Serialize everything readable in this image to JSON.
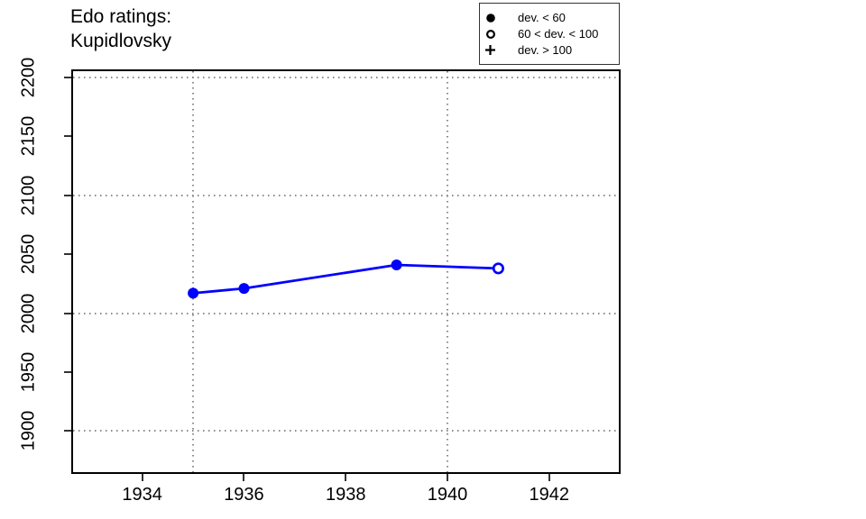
{
  "title": {
    "line1": "Edo ratings:",
    "line2": "Kupidlovsky"
  },
  "legend": {
    "items": [
      {
        "symbol": "filled-circle",
        "label": "dev. < 60"
      },
      {
        "symbol": "open-circle",
        "label": "60 < dev. < 100"
      },
      {
        "symbol": "plus",
        "label": "dev. > 100"
      }
    ]
  },
  "colors": {
    "series": "#0000ff",
    "grid": "#8a8a8a",
    "axis": "#000000",
    "text": "#000000",
    "background": "#ffffff"
  },
  "chart_data": {
    "type": "line",
    "title": "Edo ratings:",
    "subtitle": "Kupidlovsky",
    "xlabel": "",
    "ylabel": "",
    "x": [
      1935,
      1936,
      1939,
      1941
    ],
    "series": [
      {
        "name": "Edo rating (Kupidlovsky)",
        "values": [
          2017,
          2021,
          2041,
          2038
        ]
      }
    ],
    "points": [
      {
        "year": 1935,
        "rating": 2017,
        "marker": "filled-circle",
        "deviation_class": "dev. < 60"
      },
      {
        "year": 1936,
        "rating": 2021,
        "marker": "filled-circle",
        "deviation_class": "dev. < 60"
      },
      {
        "year": 1939,
        "rating": 2041,
        "marker": "filled-circle",
        "deviation_class": "dev. < 60"
      },
      {
        "year": 1941,
        "rating": 2038,
        "marker": "open-circle",
        "deviation_class": "60 < dev. < 100"
      }
    ],
    "x_ticks": [
      1934,
      1936,
      1938,
      1940,
      1942
    ],
    "y_ticks": [
      1900,
      1950,
      2000,
      2050,
      2100,
      2150,
      2200
    ],
    "x_gridlines": [
      1935,
      1940
    ],
    "y_gridlines": [
      1900,
      2000,
      2100,
      2200
    ],
    "xlim": [
      1932.64,
      1943.37
    ],
    "ylim": [
      1865.2,
      2205.3
    ],
    "grid": "dotted",
    "legend_position": "top-right"
  }
}
